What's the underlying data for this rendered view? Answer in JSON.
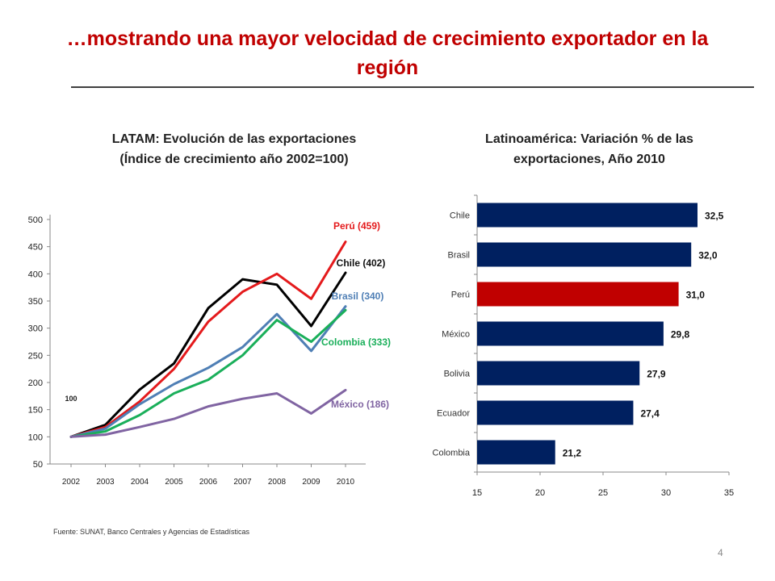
{
  "slide": {
    "title_line1": "…mostrando una mayor velocidad de crecimiento exportador en la",
    "title_line2": "región",
    "source": "Fuente: SUNAT, Banco Centrales y Agencias de Estadísticas",
    "page_number": "4"
  },
  "chart_data": [
    {
      "type": "line",
      "title_line1": "LATAM: Evolución de las exportaciones",
      "title_line2": "(Índice de crecimiento año 2002=100)",
      "x": [
        "2002",
        "2003",
        "2004",
        "2005",
        "2006",
        "2007",
        "2008",
        "2009",
        "2010"
      ],
      "ylim": [
        50,
        500
      ],
      "yticks": [
        50,
        100,
        150,
        200,
        250,
        300,
        350,
        400,
        450,
        500
      ],
      "annotation": "100",
      "series": [
        {
          "name": "Chile",
          "label": "Chile (402)",
          "color": "#000000",
          "values": [
            100,
            122,
            187,
            235,
            337,
            390,
            380,
            304,
            402
          ]
        },
        {
          "name": "Perú",
          "label": "Perú (459)",
          "color": "#e41a1c",
          "values": [
            100,
            118,
            165,
            225,
            312,
            367,
            400,
            354,
            459
          ]
        },
        {
          "name": "Brasil",
          "label": "Brasil (340)",
          "color": "#4f7fb5",
          "values": [
            100,
            115,
            160,
            197,
            227,
            265,
            326,
            258,
            340
          ]
        },
        {
          "name": "Colombia",
          "label": "Colombia (333)",
          "color": "#1aaf5a",
          "values": [
            100,
            110,
            140,
            180,
            205,
            250,
            315,
            275,
            333
          ]
        },
        {
          "name": "México",
          "label": "México (186)",
          "color": "#8064a2",
          "values": [
            100,
            104,
            118,
            133,
            156,
            170,
            180,
            143,
            186
          ]
        }
      ]
    },
    {
      "type": "bar",
      "orientation": "horizontal",
      "title_line1": "Latinoamérica: Variación % de las",
      "title_line2": "exportaciones, Año 2010",
      "categories": [
        "Chile",
        "Brasil",
        "Perú",
        "México",
        "Bolivia",
        "Ecuador",
        "Colombia"
      ],
      "values": [
        32.5,
        32.0,
        31.0,
        29.8,
        27.9,
        27.4,
        21.2
      ],
      "value_labels": [
        "32,5",
        "32,0",
        "31,0",
        "29,8",
        "27,9",
        "27,4",
        "21,2"
      ],
      "colors": [
        "#002060",
        "#002060",
        "#c00000",
        "#002060",
        "#002060",
        "#002060",
        "#002060"
      ],
      "xlim": [
        15,
        35
      ],
      "xticks": [
        15,
        20,
        25,
        30,
        35
      ]
    }
  ]
}
